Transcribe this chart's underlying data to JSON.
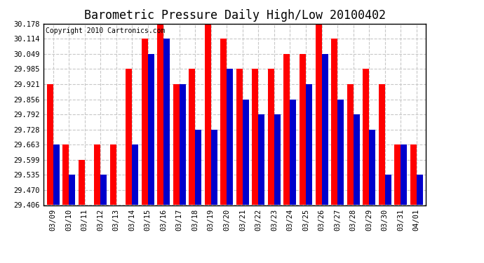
{
  "title": "Barometric Pressure Daily High/Low 20100402",
  "copyright": "Copyright 2010 Cartronics.com",
  "dates": [
    "03/09",
    "03/10",
    "03/11",
    "03/12",
    "03/13",
    "03/14",
    "03/15",
    "03/16",
    "03/17",
    "03/18",
    "03/19",
    "03/20",
    "03/21",
    "03/22",
    "03/23",
    "03/24",
    "03/25",
    "03/26",
    "03/27",
    "03/28",
    "03/29",
    "03/30",
    "03/31",
    "04/01"
  ],
  "highs": [
    29.921,
    29.663,
    29.599,
    29.663,
    29.663,
    29.985,
    30.114,
    30.178,
    29.921,
    29.985,
    30.178,
    30.114,
    29.985,
    29.985,
    29.985,
    30.049,
    30.049,
    30.178,
    30.114,
    29.921,
    29.985,
    29.921,
    29.663,
    29.663
  ],
  "lows": [
    29.663,
    29.535,
    29.406,
    29.535,
    29.406,
    29.663,
    30.049,
    30.114,
    29.921,
    29.728,
    29.728,
    29.985,
    29.856,
    29.792,
    29.792,
    29.856,
    29.921,
    30.049,
    29.856,
    29.792,
    29.728,
    29.535,
    29.663,
    29.535
  ],
  "high_color": "#ff0000",
  "low_color": "#0000cc",
  "bg_color": "#ffffff",
  "grid_color": "#c8c8c8",
  "ymin": 29.406,
  "ymax": 30.178,
  "yticks": [
    29.406,
    29.47,
    29.535,
    29.599,
    29.663,
    29.728,
    29.792,
    29.856,
    29.921,
    29.985,
    30.049,
    30.114,
    30.178
  ],
  "title_fontsize": 12,
  "copyright_fontsize": 7,
  "tick_fontsize": 7.5,
  "bar_width": 0.4
}
